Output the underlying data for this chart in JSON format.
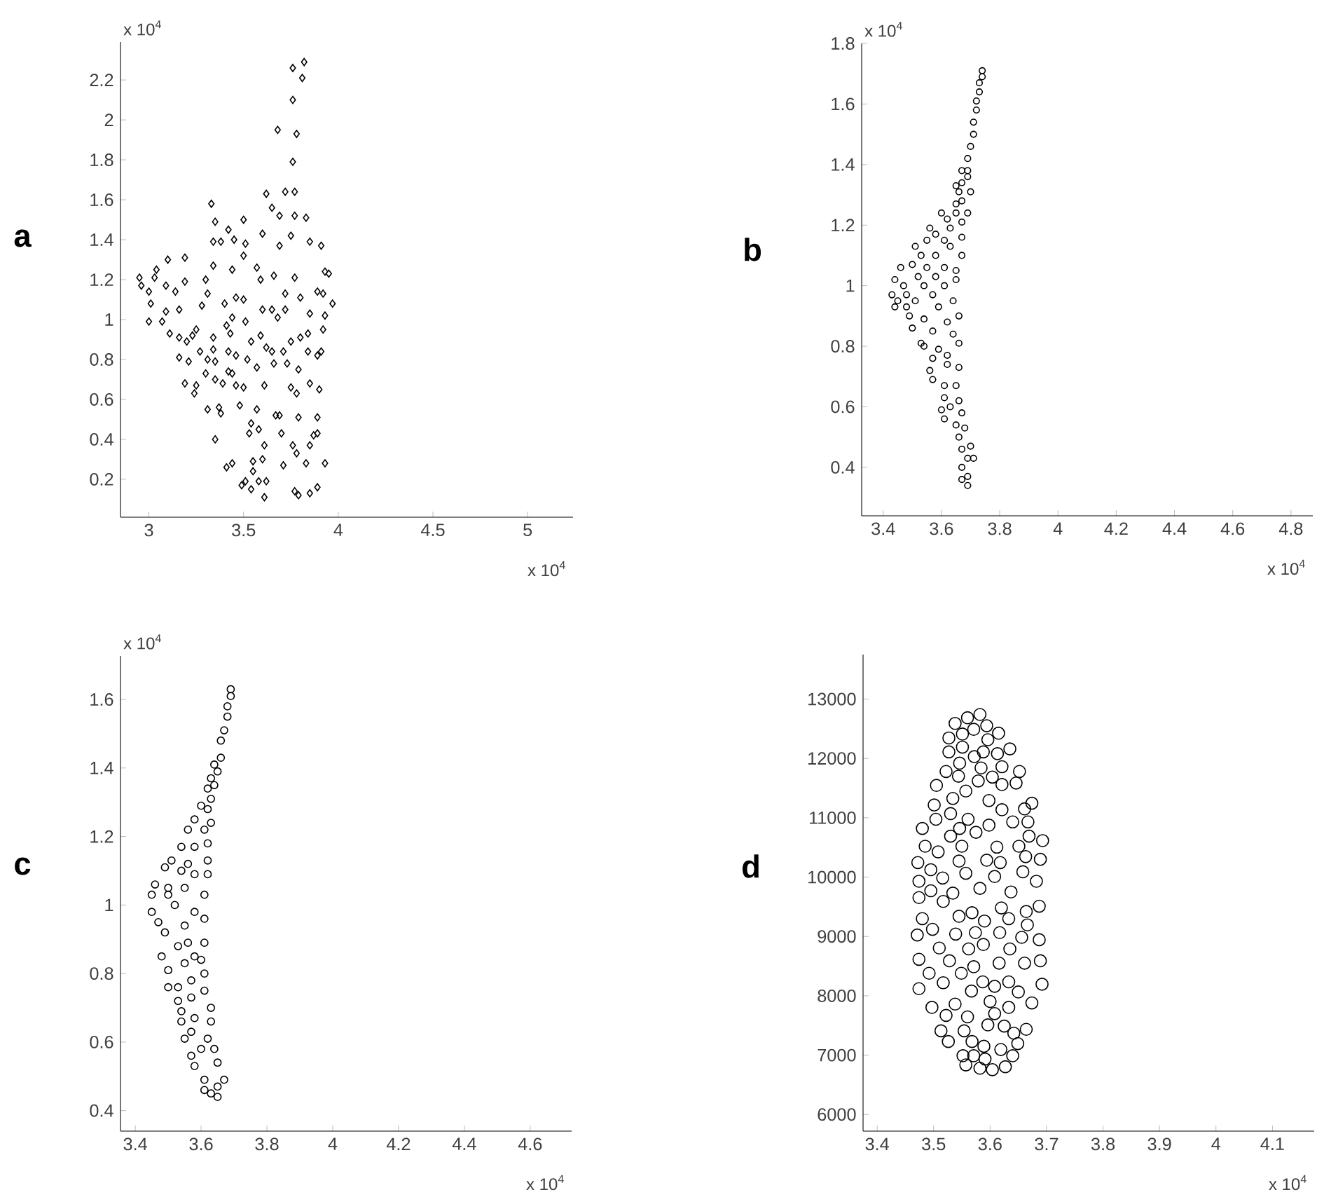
{
  "chart_data": [
    {
      "type": "scatter",
      "title": "a",
      "xlabel": "x 10$^{4}$",
      "ylabel": "x 10$^{4}$",
      "marker": "diamond",
      "color": "#000000",
      "grid": false,
      "xlim": [
        2.85,
        5.24
      ],
      "ylim": [
        0.01,
        2.39
      ],
      "xticks": [
        3,
        3.5,
        4,
        4.5,
        5
      ],
      "yticks": [
        0.2,
        0.4,
        0.6,
        0.8,
        1,
        1.2,
        1.4,
        1.6,
        1.8,
        2,
        2.2
      ],
      "x": [
        3.82,
        3.76,
        3.81,
        3.76,
        3.68,
        3.78,
        3.76,
        3.72,
        3.77,
        3.62,
        3.33,
        3.65,
        3.69,
        3.77,
        3.83,
        3.5,
        3.35,
        3.42,
        3.6,
        3.75,
        3.34,
        3.38,
        3.45,
        3.51,
        3.85,
        3.91,
        3.69,
        3.5,
        3.1,
        3.19,
        3.04,
        3.34,
        3.44,
        3.57,
        2.95,
        3.03,
        3.19,
        3.3,
        3.59,
        3.66,
        3.77,
        3.93,
        3.95,
        2.96,
        3.09,
        3.0,
        3.14,
        3.72,
        3.31,
        3.46,
        3.5,
        3.8,
        3.89,
        3.92,
        3.97,
        3.01,
        3.4,
        3.28,
        3.65,
        3.72,
        3.6,
        3.09,
        3.16,
        3.68,
        3.93,
        3.85,
        3.44,
        3.0,
        3.07,
        3.51,
        3.25,
        3.41,
        3.92,
        3.84,
        3.11,
        3.16,
        3.34,
        3.43,
        3.59,
        3.8,
        3.23,
        3.2,
        3.54,
        3.75,
        3.62,
        3.27,
        3.42,
        3.34,
        3.65,
        3.71,
        3.84,
        3.91,
        3.46,
        3.89,
        3.16,
        3.52,
        3.31,
        3.35,
        3.21,
        3.66,
        3.73,
        3.57,
        3.79,
        3.3,
        3.42,
        3.44,
        3.35,
        3.39,
        3.19,
        3.25,
        3.46,
        3.5,
        3.61,
        3.75,
        3.85,
        3.9,
        3.24,
        3.78,
        3.48,
        3.57,
        3.31,
        3.37,
        3.38,
        3.67,
        3.69,
        3.79,
        3.89,
        3.54,
        3.58,
        3.53,
        3.7,
        3.87,
        3.89,
        3.35,
        3.61,
        3.85,
        3.76,
        3.78,
        3.6,
        3.55,
        3.71,
        3.83,
        3.93,
        3.44,
        3.41,
        3.55,
        3.49,
        3.51,
        3.58,
        3.62,
        3.54,
        3.61,
        3.77,
        3.79,
        3.85,
        3.89
      ],
      "values": [
        2.29,
        2.26,
        2.21,
        2.1,
        1.95,
        1.93,
        1.79,
        1.64,
        1.64,
        1.63,
        1.58,
        1.56,
        1.52,
        1.52,
        1.51,
        1.5,
        1.49,
        1.45,
        1.43,
        1.42,
        1.39,
        1.39,
        1.4,
        1.38,
        1.39,
        1.37,
        1.37,
        1.32,
        1.3,
        1.31,
        1.25,
        1.27,
        1.25,
        1.26,
        1.21,
        1.21,
        1.19,
        1.2,
        1.2,
        1.22,
        1.21,
        1.24,
        1.23,
        1.17,
        1.17,
        1.14,
        1.14,
        1.13,
        1.13,
        1.11,
        1.1,
        1.11,
        1.14,
        1.13,
        1.08,
        1.08,
        1.08,
        1.07,
        1.05,
        1.05,
        1.05,
        1.04,
        1.05,
        1.01,
        1.02,
        1.03,
        1.01,
        0.99,
        0.99,
        0.99,
        0.95,
        0.97,
        0.95,
        0.93,
        0.93,
        0.91,
        0.91,
        0.93,
        0.92,
        0.91,
        0.92,
        0.89,
        0.89,
        0.89,
        0.86,
        0.84,
        0.84,
        0.85,
        0.84,
        0.84,
        0.84,
        0.84,
        0.82,
        0.82,
        0.81,
        0.8,
        0.8,
        0.79,
        0.79,
        0.78,
        0.78,
        0.76,
        0.75,
        0.73,
        0.74,
        0.73,
        0.7,
        0.68,
        0.68,
        0.67,
        0.67,
        0.66,
        0.67,
        0.66,
        0.68,
        0.65,
        0.63,
        0.63,
        0.57,
        0.55,
        0.55,
        0.56,
        0.53,
        0.52,
        0.52,
        0.51,
        0.51,
        0.48,
        0.45,
        0.43,
        0.43,
        0.42,
        0.43,
        0.4,
        0.37,
        0.37,
        0.37,
        0.33,
        0.3,
        0.29,
        0.27,
        0.28,
        0.28,
        0.28,
        0.26,
        0.24,
        0.17,
        0.19,
        0.19,
        0.19,
        0.15,
        0.11,
        0.14,
        0.12,
        0.13,
        0.16
      ]
    },
    {
      "type": "scatter",
      "title": "b",
      "xlabel": "x 10$^{4}$",
      "ylabel": "x 10$^{4}$",
      "marker": "circle",
      "color": "#000000",
      "grid": false,
      "xlim": [
        3.326,
        4.875
      ],
      "ylim": [
        0.24,
        1.8
      ],
      "xticks": [
        3.4,
        3.6,
        3.8,
        4,
        4.2,
        4.4,
        4.6,
        4.8
      ],
      "yticks": [
        0.4,
        0.6,
        0.8,
        1,
        1.2,
        1.4,
        1.6,
        1.8
      ],
      "x": [
        3.74,
        3.74,
        3.73,
        3.73,
        3.72,
        3.72,
        3.71,
        3.71,
        3.7,
        3.69,
        3.69,
        3.67,
        3.69,
        3.67,
        3.65,
        3.7,
        3.66,
        3.67,
        3.65,
        3.69,
        3.6,
        3.65,
        3.62,
        3.67,
        3.56,
        3.63,
        3.58,
        3.67,
        3.61,
        3.55,
        3.51,
        3.63,
        3.67,
        3.53,
        3.58,
        3.46,
        3.5,
        3.55,
        3.65,
        3.61,
        3.44,
        3.52,
        3.58,
        3.65,
        3.47,
        3.54,
        3.61,
        3.43,
        3.48,
        3.57,
        3.64,
        3.45,
        3.51,
        3.44,
        3.59,
        3.66,
        3.48,
        3.49,
        3.54,
        3.62,
        3.5,
        3.57,
        3.64,
        3.53,
        3.66,
        3.54,
        3.59,
        3.62,
        3.57,
        3.62,
        3.56,
        3.66,
        3.57,
        3.65,
        3.61,
        3.61,
        3.66,
        3.6,
        3.63,
        3.67,
        3.61,
        3.65,
        3.68,
        3.66,
        3.7,
        3.67,
        3.69,
        3.71,
        3.67,
        3.69,
        3.67,
        3.69
      ],
      "values": [
        1.71,
        1.69,
        1.67,
        1.64,
        1.61,
        1.58,
        1.54,
        1.5,
        1.46,
        1.42,
        1.38,
        1.38,
        1.36,
        1.34,
        1.33,
        1.31,
        1.31,
        1.28,
        1.27,
        1.24,
        1.24,
        1.24,
        1.22,
        1.21,
        1.19,
        1.19,
        1.17,
        1.16,
        1.15,
        1.15,
        1.13,
        1.13,
        1.1,
        1.1,
        1.1,
        1.06,
        1.07,
        1.06,
        1.05,
        1.06,
        1.02,
        1.03,
        1.03,
        1.02,
        1.0,
        1.0,
        1.0,
        0.97,
        0.97,
        0.97,
        0.95,
        0.95,
        0.95,
        0.93,
        0.93,
        0.9,
        0.93,
        0.9,
        0.89,
        0.88,
        0.86,
        0.85,
        0.84,
        0.81,
        0.81,
        0.8,
        0.79,
        0.77,
        0.76,
        0.74,
        0.72,
        0.73,
        0.69,
        0.67,
        0.67,
        0.63,
        0.62,
        0.59,
        0.6,
        0.58,
        0.56,
        0.54,
        0.53,
        0.5,
        0.47,
        0.46,
        0.43,
        0.43,
        0.4,
        0.37,
        0.36,
        0.34
      ]
    },
    {
      "type": "scatter",
      "title": "c",
      "xlabel": "x 10$^{4}$",
      "ylabel": "x 10$^{4}$",
      "marker": "circle",
      "color": "#000000",
      "grid": false,
      "xlim": [
        3.355,
        4.726
      ],
      "ylim": [
        0.34,
        1.727
      ],
      "xticks": [
        3.4,
        3.6,
        3.8,
        4,
        4.2,
        4.4,
        4.6
      ],
      "yticks": [
        0.4,
        0.6,
        0.8,
        1,
        1.2,
        1.4,
        1.6
      ],
      "x": [
        3.69,
        3.69,
        3.68,
        3.68,
        3.67,
        3.66,
        3.66,
        3.65,
        3.64,
        3.63,
        3.64,
        3.62,
        3.63,
        3.6,
        3.62,
        3.63,
        3.58,
        3.56,
        3.61,
        3.62,
        3.54,
        3.58,
        3.51,
        3.62,
        3.56,
        3.49,
        3.54,
        3.58,
        3.62,
        3.46,
        3.5,
        3.55,
        3.61,
        3.45,
        3.5,
        3.45,
        3.52,
        3.58,
        3.61,
        3.47,
        3.55,
        3.49,
        3.61,
        3.56,
        3.53,
        3.48,
        3.58,
        3.55,
        3.6,
        3.5,
        3.61,
        3.57,
        3.5,
        3.53,
        3.61,
        3.57,
        3.53,
        3.63,
        3.54,
        3.58,
        3.63,
        3.54,
        3.57,
        3.55,
        3.62,
        3.6,
        3.64,
        3.57,
        3.65,
        3.58,
        3.67,
        3.61,
        3.65,
        3.61,
        3.63,
        3.65
      ],
      "values": [
        1.63,
        1.61,
        1.58,
        1.55,
        1.51,
        1.48,
        1.43,
        1.39,
        1.41,
        1.37,
        1.35,
        1.34,
        1.31,
        1.29,
        1.28,
        1.24,
        1.25,
        1.22,
        1.22,
        1.18,
        1.17,
        1.17,
        1.13,
        1.13,
        1.12,
        1.11,
        1.1,
        1.09,
        1.09,
        1.06,
        1.05,
        1.05,
        1.03,
        1.03,
        1.03,
        0.98,
        1.0,
        0.98,
        0.96,
        0.95,
        0.94,
        0.92,
        0.89,
        0.89,
        0.88,
        0.85,
        0.85,
        0.83,
        0.84,
        0.81,
        0.8,
        0.78,
        0.76,
        0.76,
        0.75,
        0.73,
        0.72,
        0.7,
        0.69,
        0.67,
        0.66,
        0.66,
        0.63,
        0.61,
        0.61,
        0.58,
        0.58,
        0.56,
        0.54,
        0.53,
        0.49,
        0.49,
        0.47,
        0.46,
        0.45,
        0.44
      ]
    },
    {
      "type": "scatter",
      "title": "d",
      "xlabel": "x 10$^{4}$",
      "marker": "circle",
      "color": "#000000",
      "grid": false,
      "xlim": [
        3.375,
        4.174
      ],
      "ylim": [
        5720,
        13750
      ],
      "xticks": [
        3.4,
        3.5,
        3.6,
        3.7,
        3.8,
        3.9,
        4,
        4.1
      ],
      "yticks": [
        6000,
        7000,
        8000,
        9000,
        10000,
        11000,
        12000,
        13000
      ],
      "x": [
        3.582,
        3.56,
        3.538,
        3.594,
        3.615,
        3.527,
        3.571,
        3.551,
        3.596,
        3.551,
        3.527,
        3.588,
        3.635,
        3.572,
        3.613,
        3.546,
        3.621,
        3.522,
        3.584,
        3.652,
        3.544,
        3.604,
        3.505,
        3.579,
        3.646,
        3.557,
        3.621,
        3.534,
        3.598,
        3.674,
        3.501,
        3.661,
        3.53,
        3.621,
        3.561,
        3.504,
        3.667,
        3.48,
        3.546,
        3.598,
        3.64,
        3.669,
        3.693,
        3.53,
        3.575,
        3.485,
        3.55,
        3.612,
        3.651,
        3.508,
        3.689,
        3.472,
        3.545,
        3.594,
        3.663,
        3.618,
        3.495,
        3.682,
        3.516,
        3.557,
        3.608,
        3.658,
        3.474,
        3.495,
        3.534,
        3.582,
        3.637,
        3.687,
        3.474,
        3.517,
        3.62,
        3.664,
        3.568,
        3.48,
        3.545,
        3.59,
        3.666,
        3.498,
        3.633,
        3.471,
        3.539,
        3.574,
        3.617,
        3.687,
        3.656,
        3.51,
        3.562,
        3.588,
        3.635,
        3.474,
        3.528,
        3.571,
        3.616,
        3.689,
        3.661,
        3.492,
        3.549,
        3.587,
        3.633,
        3.692,
        3.474,
        3.517,
        3.567,
        3.608,
        3.65,
        3.497,
        3.538,
        3.6,
        3.674,
        3.522,
        3.56,
        3.633,
        3.608,
        3.513,
        3.554,
        3.596,
        3.664,
        3.625,
        3.526,
        3.568,
        3.642,
        3.649,
        3.589,
        3.552,
        3.571,
        3.619,
        3.591,
        3.64,
        3.557,
        3.582,
        3.604,
        3.627
      ],
      "values": [
        12740,
        12685,
        12590,
        12550,
        12425,
        12345,
        12490,
        12410,
        12315,
        12190,
        12110,
        12110,
        12160,
        12030,
        12080,
        11920,
        11860,
        11780,
        11840,
        11780,
        11700,
        11685,
        11545,
        11620,
        11585,
        11450,
        11560,
        11325,
        11290,
        11245,
        11215,
        11150,
        11070,
        11135,
        10975,
        10975,
        10930,
        10820,
        10820,
        10875,
        10930,
        10690,
        10615,
        10690,
        10755,
        10520,
        10520,
        10505,
        10520,
        10425,
        10300,
        10245,
        10270,
        10285,
        10345,
        10245,
        10125,
        9930,
        9985,
        10065,
        10010,
        10090,
        9930,
        9770,
        9730,
        9810,
        9750,
        9510,
        9655,
        9590,
        9480,
        9420,
        9400,
        9300,
        9340,
        9260,
        9195,
        9120,
        9300,
        9025,
        9040,
        9065,
        9065,
        8945,
        8985,
        8805,
        8790,
        8865,
        8790,
        8615,
        8590,
        8490,
        8550,
        8590,
        8550,
        8380,
        8380,
        8235,
        8235,
        8195,
        8120,
        8220,
        8080,
        8160,
        8065,
        7805,
        7860,
        7905,
        7880,
        7670,
        7645,
        7805,
        7700,
        7410,
        7410,
        7510,
        7435,
        7490,
        7230,
        7230,
        7370,
        7195,
        7150,
        6990,
        6990,
        7095,
        6935,
        6990,
        6835,
        6780,
        6755,
        6805
      ]
    }
  ]
}
